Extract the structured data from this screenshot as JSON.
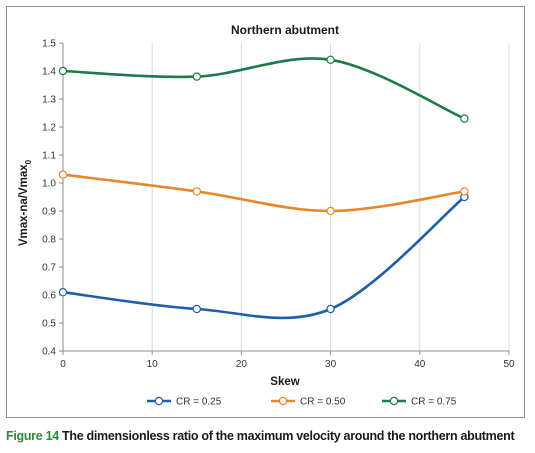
{
  "chart_data": {
    "type": "line",
    "title": "Northern abutment",
    "xlabel": "Skew",
    "ylabel_main": "Vmax-na/Vmax",
    "ylabel_sub": "0",
    "xlim": [
      0,
      50
    ],
    "ylim": [
      0.4,
      1.5
    ],
    "x_ticks": [
      "0",
      "10",
      "20",
      "30",
      "40",
      "50"
    ],
    "y_ticks": [
      "0.4",
      "0.5",
      "0.6",
      "0.7",
      "0.8",
      "0.9",
      "1.0",
      "1.1",
      "1.2",
      "1.3",
      "1.4",
      "1.5"
    ],
    "grid": "vertical",
    "legend_position": "bottom",
    "x": [
      0,
      15,
      30,
      45
    ],
    "series": [
      {
        "name": "CR = 0.25",
        "color": "#1f5fa8",
        "values": [
          0.61,
          0.55,
          0.55,
          0.95
        ]
      },
      {
        "name": "CR = 0.50",
        "color": "#e8862b",
        "values": [
          1.03,
          0.97,
          0.9,
          0.97
        ]
      },
      {
        "name": "CR = 0.75",
        "color": "#1e7a4a",
        "values": [
          1.4,
          1.38,
          1.44,
          1.23
        ]
      }
    ]
  },
  "caption": {
    "figure_label": "Figure 14",
    "text": " The dimensionless ratio of the maximum velocity around the northern abutment"
  }
}
